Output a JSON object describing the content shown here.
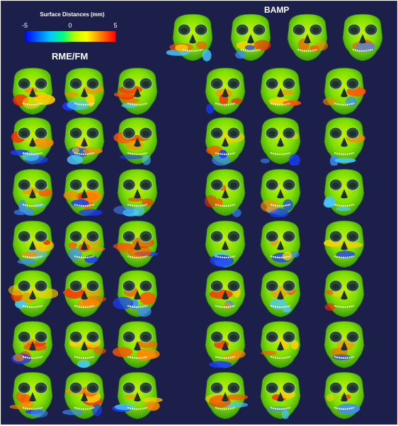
{
  "legend": {
    "title": "Surface Distances (mm)",
    "tick_min": "-5",
    "tick_mid": "0",
    "tick_max": "5",
    "colors": [
      "#0000ff",
      "#00c8ff",
      "#00ff80",
      "#b6ff00",
      "#ffff00",
      "#ff8000",
      "#ff0000"
    ]
  },
  "groups": {
    "left_label": "RME/FM",
    "right_label": "BAMP"
  },
  "background_color": "#1b1f4a"
}
